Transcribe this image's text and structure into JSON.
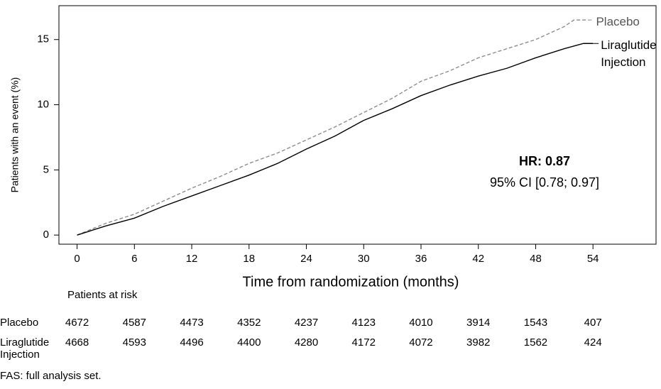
{
  "chart_data": {
    "type": "line",
    "x_label": "Time from randomization (months)",
    "y_label": "Patients with an event (%)",
    "xlim": [
      -1.9,
      60.6
    ],
    "ylim": [
      -0.7,
      17.6
    ],
    "xticks": [
      0,
      6,
      12,
      18,
      24,
      30,
      36,
      42,
      48,
      54
    ],
    "yticks": [
      0,
      5,
      10,
      15
    ],
    "series": [
      {
        "name": "Placebo",
        "color": "#8c8c8c",
        "dashed": true,
        "x": [
          0,
          3,
          6,
          9,
          12,
          15,
          18,
          21,
          24,
          27,
          30,
          33,
          36,
          39,
          42,
          45,
          48,
          51,
          52,
          53.5
        ],
        "values": [
          0,
          0.9,
          1.6,
          2.6,
          3.6,
          4.5,
          5.5,
          6.3,
          7.3,
          8.3,
          9.4,
          10.5,
          11.8,
          12.6,
          13.6,
          14.3,
          15.0,
          16.0,
          16.5,
          16.5
        ]
      },
      {
        "name": "Liraglutide Injection",
        "color": "#000000",
        "dashed": false,
        "x": [
          0,
          3,
          6,
          9,
          12,
          15,
          18,
          21,
          24,
          27,
          30,
          33,
          36,
          39,
          42,
          45,
          48,
          51,
          53,
          54
        ],
        "values": [
          0,
          0.7,
          1.3,
          2.2,
          3.0,
          3.8,
          4.6,
          5.5,
          6.6,
          7.6,
          8.8,
          9.7,
          10.7,
          11.5,
          12.2,
          12.8,
          13.6,
          14.3,
          14.7,
          14.7
        ]
      }
    ],
    "annotations": [
      "HR: 0.87",
      "95% CI [0.78; 0.97]"
    ]
  },
  "risk_table": {
    "title": "Patients at risk",
    "rows": [
      {
        "label": "Placebo",
        "values": [
          4672,
          4587,
          4473,
          4352,
          4237,
          4123,
          4010,
          3914,
          1543,
          407
        ]
      },
      {
        "label": "Liraglutide Injection",
        "values": [
          4668,
          4593,
          4496,
          4400,
          4280,
          4172,
          4072,
          3982,
          1562,
          424
        ]
      }
    ]
  },
  "footnote": "FAS: full analysis set."
}
